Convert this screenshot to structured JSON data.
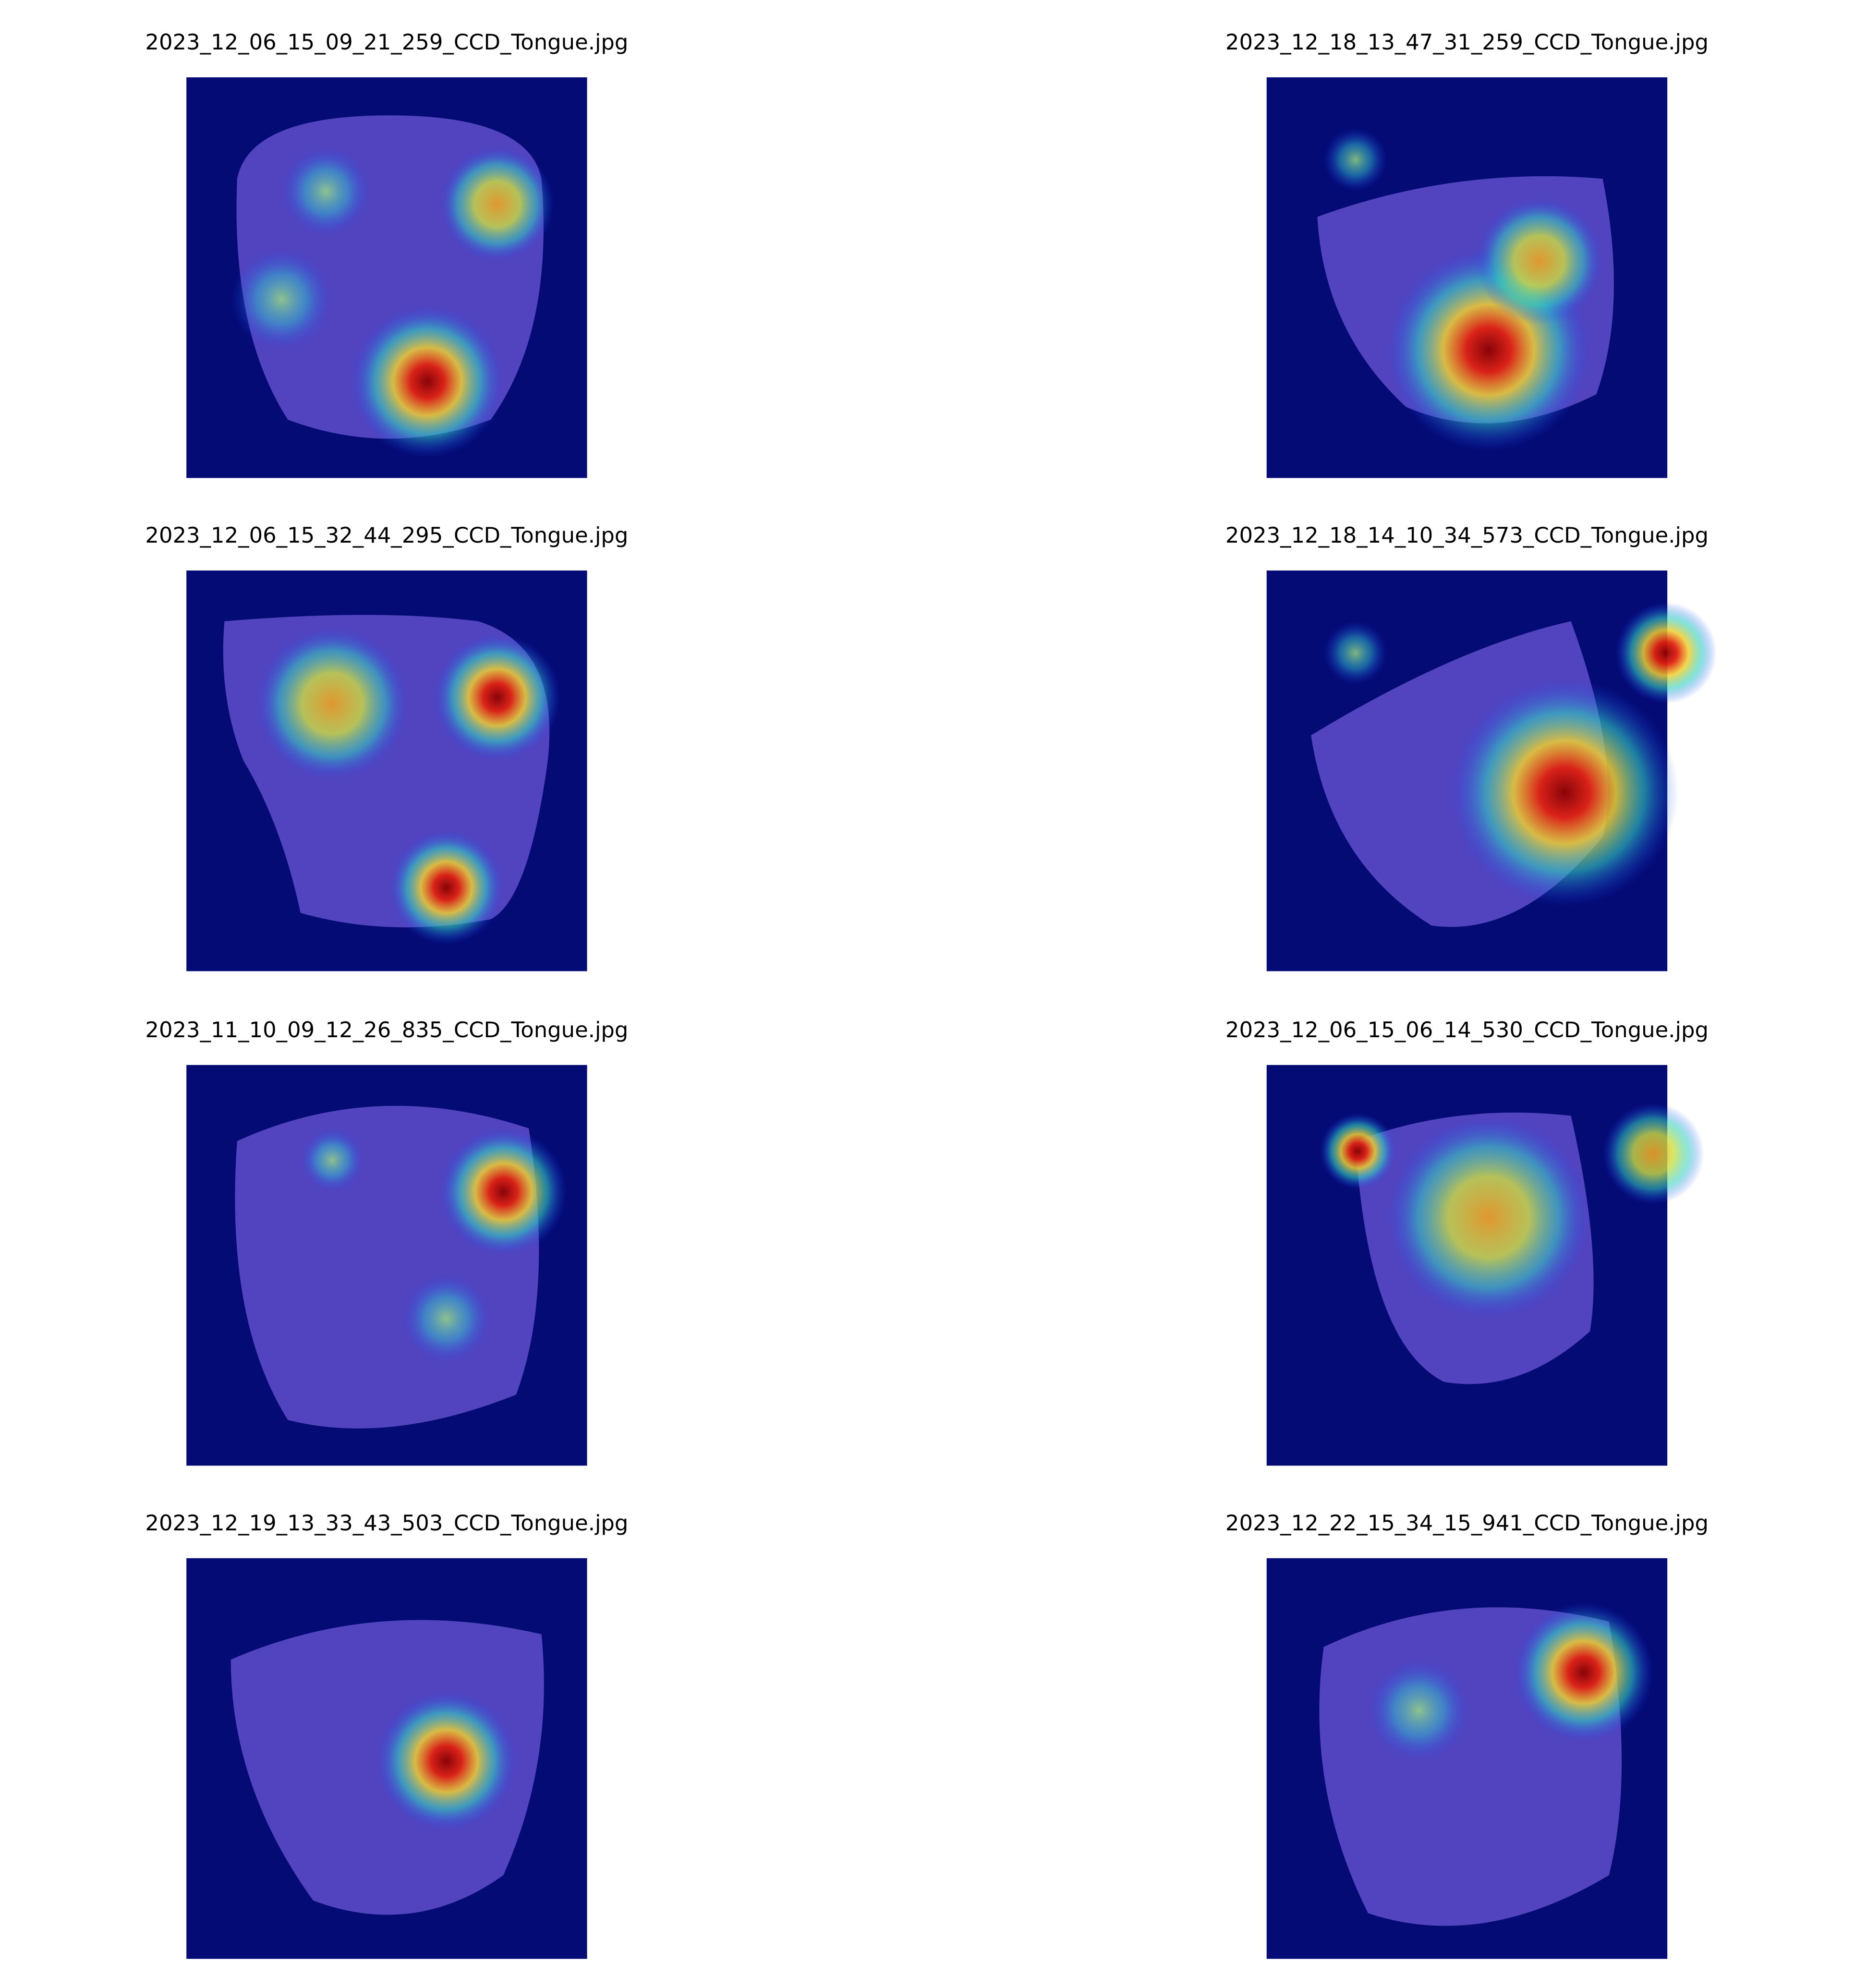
{
  "images": [
    {
      "title": "2023_12_06_15_09_21_259_CCD_Tongue.jpg"
    },
    {
      "title": "2023_12_18_13_47_31_259_CCD_Tongue.jpg"
    },
    {
      "title": "2023_12_06_15_32_44_295_CCD_Tongue.jpg"
    },
    {
      "title": "2023_12_18_14_10_34_573_CCD_Tongue.jpg"
    },
    {
      "title": "2023_11_10_09_12_26_835_CCD_Tongue.jpg"
    },
    {
      "title": "2023_12_06_15_06_14_530_CCD_Tongue.jpg"
    },
    {
      "title": "2023_12_19_13_33_43_503_CCD_Tongue.jpg"
    },
    {
      "title": "2023_12_22_15_34_15_941_CCD_Tongue.jpg"
    }
  ]
}
